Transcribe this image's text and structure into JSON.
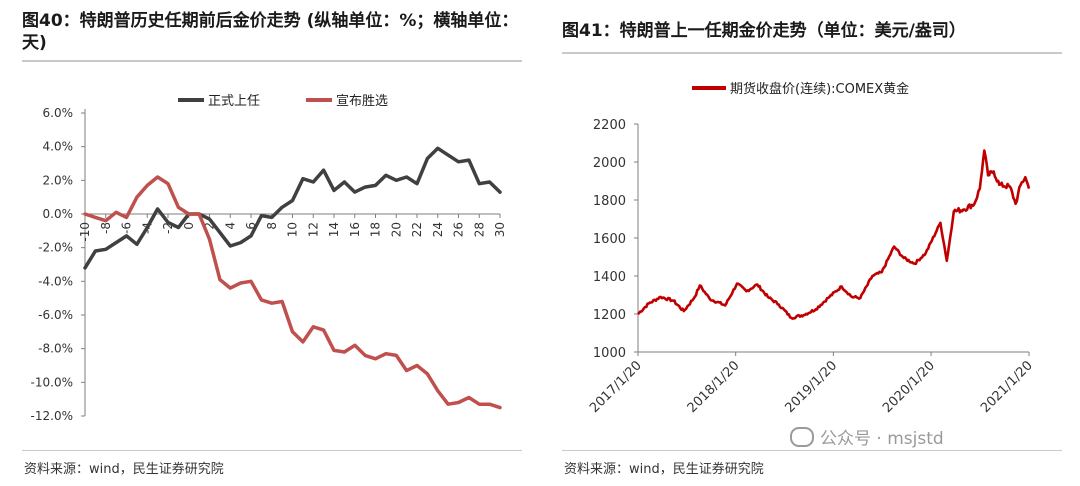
{
  "left_panel": {
    "title": "图40：特朗普历史任期前后金价走势 (纵轴单位：%；横轴单位：天)",
    "source": "资料来源：wind，民生证券研究院"
  },
  "right_panel": {
    "title": "图41：特朗普上一任期金价走势（单位：美元/盎司）",
    "source": "资料来源：wind，民生证券研究院"
  },
  "watermark": "公众号 · msjstd",
  "colors": {
    "series_dark": "#404040",
    "series_red": "#c0504d",
    "gold_red": "#c00000",
    "axis": "#7f7f7f"
  },
  "chart_data": [
    {
      "type": "line",
      "title": "",
      "xlabel": "",
      "ylabel": "",
      "legend_position": "top",
      "grid": false,
      "xlim": [
        -10,
        30
      ],
      "ylim": [
        -12,
        6
      ],
      "x_ticks": [
        -10,
        -8,
        -6,
        -4,
        -2,
        0,
        2,
        4,
        6,
        8,
        10,
        12,
        14,
        16,
        18,
        20,
        22,
        24,
        26,
        28,
        30
      ],
      "y_ticks": [
        6,
        4,
        2,
        0,
        -2,
        -4,
        -6,
        -8,
        -10,
        -12
      ],
      "y_tick_labels": [
        "6.0%",
        "4.0%",
        "2.0%",
        "0.0%",
        "-2.0%",
        "-4.0%",
        "-6.0%",
        "-8.0%",
        "-10.0%",
        "-12.0%"
      ],
      "series": [
        {
          "name": "正式上任",
          "color": "#404040",
          "x": [
            -10,
            -9,
            -8,
            -7,
            -6,
            -5,
            -4,
            -3,
            -2,
            -1,
            0,
            1,
            2,
            3,
            4,
            5,
            6,
            7,
            8,
            9,
            10,
            11,
            12,
            13,
            14,
            15,
            16,
            17,
            18,
            19,
            20,
            21,
            22,
            23,
            24,
            25,
            26,
            27,
            28,
            29,
            30
          ],
          "y": [
            -3.2,
            -2.2,
            -2.1,
            -1.7,
            -1.3,
            -1.8,
            -0.8,
            0.3,
            -0.5,
            -0.8,
            0.0,
            0.0,
            -0.3,
            -1.1,
            -1.9,
            -1.7,
            -1.3,
            -0.1,
            -0.2,
            0.4,
            0.8,
            2.1,
            1.9,
            2.6,
            1.4,
            1.9,
            1.3,
            1.6,
            1.7,
            2.3,
            2.0,
            2.2,
            1.8,
            3.3,
            3.9,
            3.5,
            3.1,
            3.2,
            1.8,
            1.9,
            1.3
          ]
        },
        {
          "name": "宣布胜选",
          "color": "#c0504d",
          "x": [
            -10,
            -9,
            -8,
            -7,
            -6,
            -5,
            -4,
            -3,
            -2,
            -1,
            0,
            1,
            2,
            3,
            4,
            5,
            6,
            7,
            8,
            9,
            10,
            11,
            12,
            13,
            14,
            15,
            16,
            17,
            18,
            19,
            20,
            21,
            22,
            23,
            24,
            25,
            26,
            27,
            28,
            29,
            30
          ],
          "y": [
            0.0,
            -0.2,
            -0.4,
            0.1,
            -0.2,
            1.0,
            1.7,
            2.2,
            1.8,
            0.4,
            0.0,
            0.0,
            -1.5,
            -3.9,
            -4.4,
            -4.1,
            -4.0,
            -5.1,
            -5.3,
            -5.2,
            -7.0,
            -7.6,
            -6.7,
            -6.9,
            -8.1,
            -8.2,
            -7.8,
            -8.4,
            -8.6,
            -8.3,
            -8.4,
            -9.3,
            -9.0,
            -9.5,
            -10.5,
            -11.3,
            -11.2,
            -10.9,
            -11.3,
            -11.3,
            -11.5
          ]
        }
      ]
    },
    {
      "type": "line",
      "title": "",
      "xlabel": "",
      "ylabel": "",
      "legend_position": "top",
      "grid": false,
      "x_ticks": [
        "2017/1/20",
        "2018/1/20",
        "2019/1/20",
        "2020/1/20",
        "2021/1/20"
      ],
      "xlim": [
        "2017/1/20",
        "2021/1/20"
      ],
      "ylim": [
        1000,
        2200
      ],
      "y_ticks": [
        2200,
        2000,
        1800,
        1600,
        1400,
        1200,
        1000
      ],
      "series": [
        {
          "name": "期货收盘价(连续):COMEX黄金",
          "color": "#c00000",
          "x": [
            "2017/1/20",
            "2017/3/1",
            "2017/4/15",
            "2017/6/1",
            "2017/7/10",
            "2017/8/20",
            "2017/9/8",
            "2017/10/15",
            "2017/12/12",
            "2018/1/25",
            "2018/3/1",
            "2018/4/11",
            "2018/5/20",
            "2018/6/30",
            "2018/8/16",
            "2018/10/1",
            "2018/11/15",
            "2019/1/1",
            "2019/2/20",
            "2019/3/30",
            "2019/5/1",
            "2019/6/15",
            "2019/7/20",
            "2019/9/4",
            "2019/10/10",
            "2019/11/20",
            "2019/12/31",
            "2020/2/24",
            "2020/3/19",
            "2020/4/14",
            "2020/5/20",
            "2020/6/30",
            "2020/7/20",
            "2020/8/6",
            "2020/8/20",
            "2020/9/10",
            "2020/10/1",
            "2020/11/10",
            "2020/12/1",
            "2020/12/20",
            "2021/1/6",
            "2021/1/20"
          ],
          "y": [
            1200,
            1255,
            1290,
            1270,
            1215,
            1290,
            1350,
            1280,
            1245,
            1360,
            1320,
            1355,
            1290,
            1250,
            1180,
            1195,
            1225,
            1285,
            1345,
            1290,
            1285,
            1400,
            1420,
            1555,
            1495,
            1465,
            1520,
            1680,
            1480,
            1740,
            1750,
            1780,
            1860,
            2060,
            1930,
            1950,
            1880,
            1870,
            1780,
            1880,
            1920,
            1860
          ]
        }
      ]
    }
  ]
}
